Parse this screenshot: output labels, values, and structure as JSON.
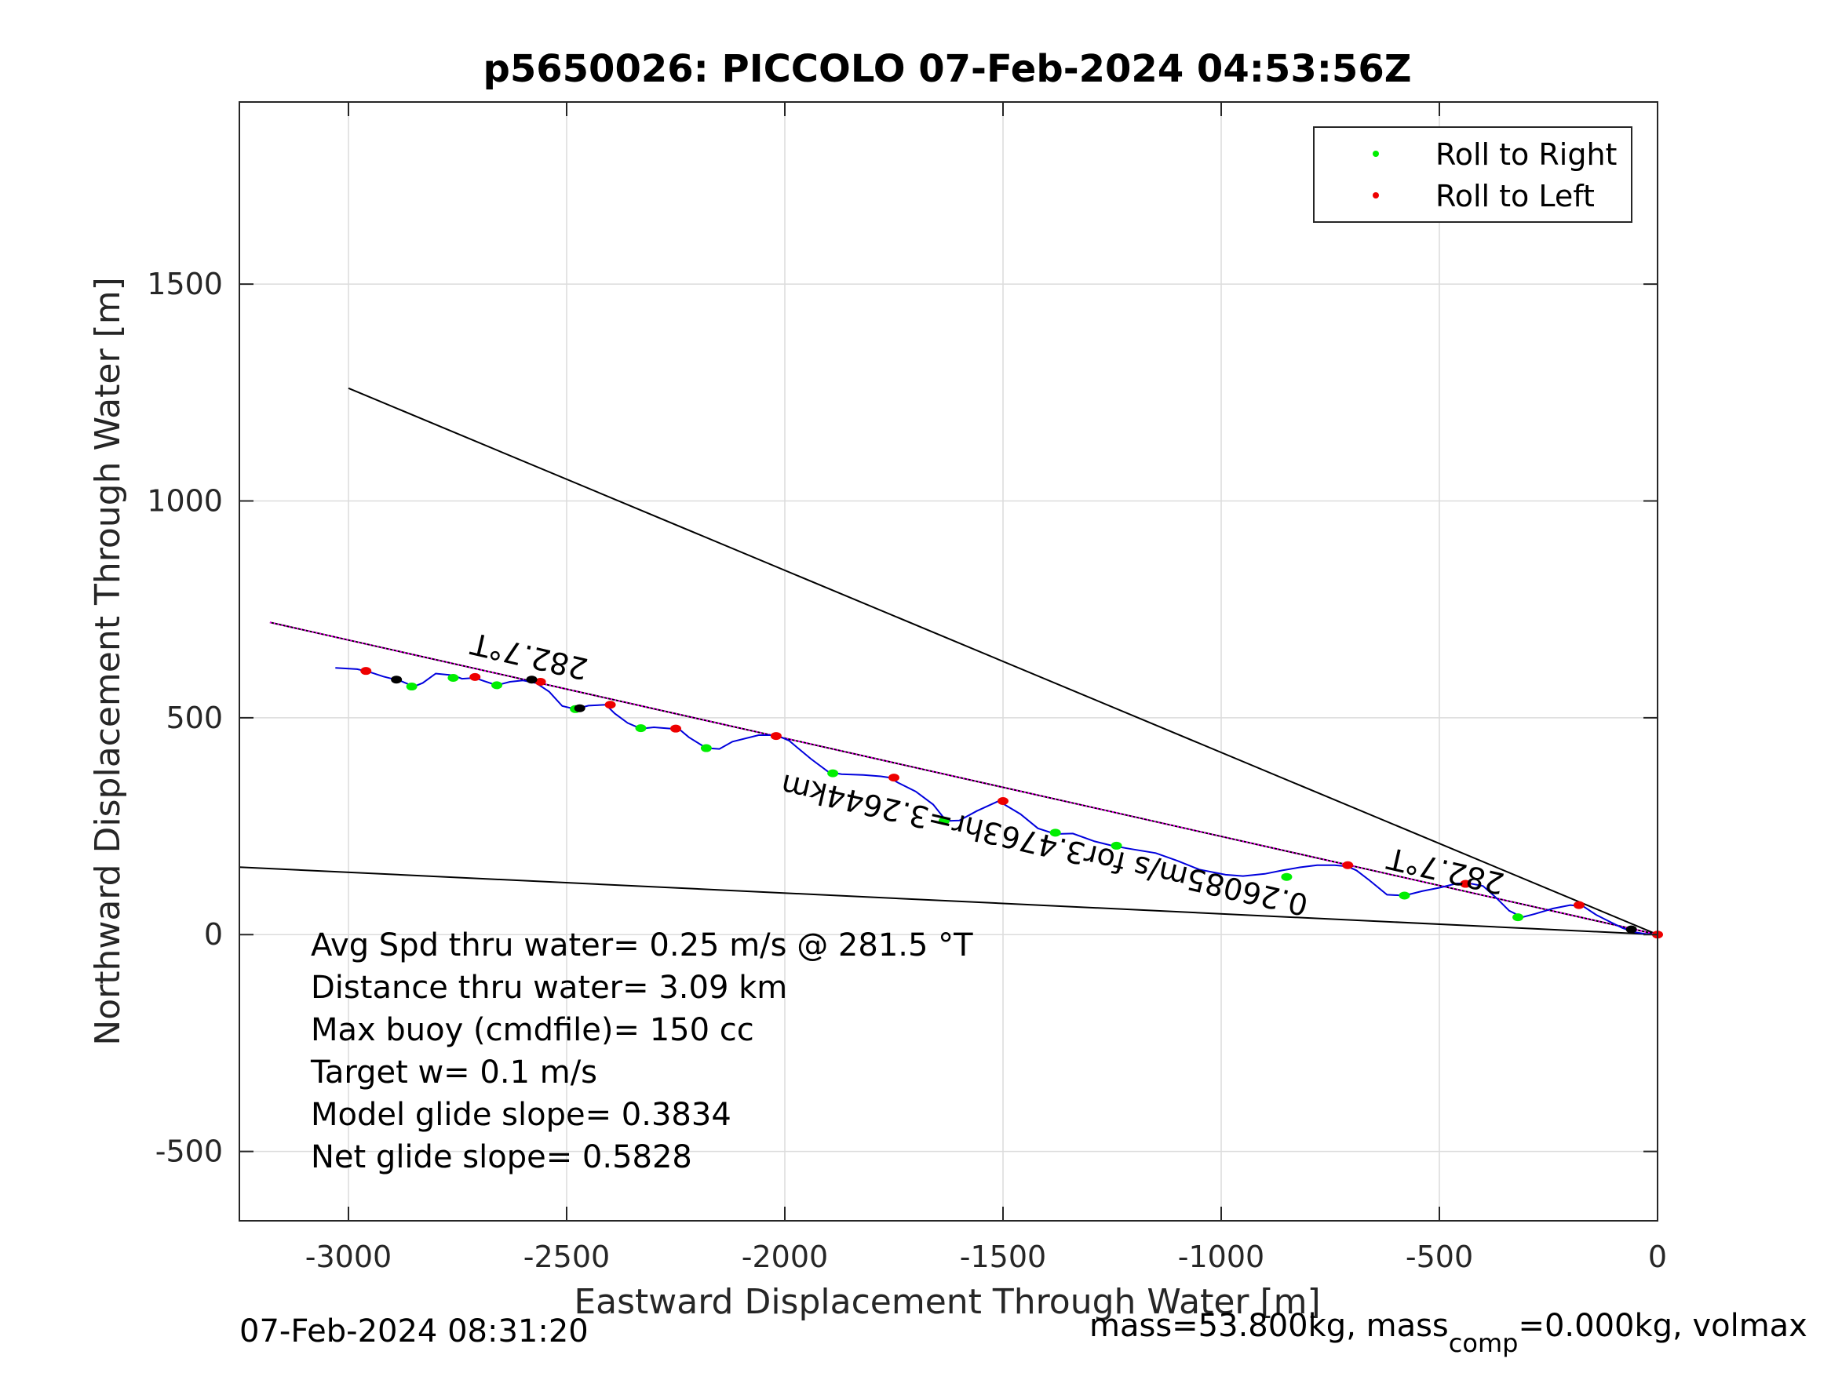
{
  "chart_data": {
    "type": "line",
    "title": "p5650026: PICCOLO 07-Feb-2024 04:53:56Z",
    "xlabel": "Eastward Displacement Through Water [m]",
    "ylabel": "Northward Displacement Through Water [m]",
    "xlim": [
      -3250,
      0
    ],
    "ylim": [
      -660,
      1920
    ],
    "xticks": [
      -3000,
      -2500,
      -2000,
      -1500,
      -1000,
      -500,
      0
    ],
    "yticks": [
      -500,
      0,
      500,
      1000,
      1500
    ],
    "xtick_labels": [
      "-3000",
      "-2500",
      "-2000",
      "-1500",
      "-1000",
      "-500",
      "0"
    ],
    "ytick_labels": [
      "-500",
      "0",
      "500",
      "1000",
      "1500"
    ],
    "grid": true,
    "legend_position": "top-right",
    "legend": [
      {
        "label": "Roll to Right",
        "color": "#00ee00"
      },
      {
        "label": "Roll to Left",
        "color": "#ee0000"
      }
    ],
    "track": {
      "color": "#0000dd",
      "x": [
        -3030,
        -2980,
        -2950,
        -2920,
        -2880,
        -2850,
        -2830,
        -2800,
        -2760,
        -2740,
        -2710,
        -2690,
        -2660,
        -2630,
        -2600,
        -2570,
        -2540,
        -2510,
        -2480,
        -2450,
        -2410,
        -2390,
        -2360,
        -2330,
        -2300,
        -2260,
        -2240,
        -2220,
        -2180,
        -2150,
        -2120,
        -2060,
        -2020,
        -1990,
        -1970,
        -1940,
        -1900,
        -1870,
        -1820,
        -1780,
        -1760,
        -1740,
        -1700,
        -1660,
        -1630,
        -1600,
        -1560,
        -1510,
        -1460,
        -1420,
        -1380,
        -1340,
        -1290,
        -1250,
        -1210,
        -1150,
        -1100,
        -1050,
        -990,
        -950,
        -900,
        -860,
        -820,
        -780,
        -740,
        -710,
        -690,
        -660,
        -620,
        -580,
        -540,
        -500,
        -460,
        -430,
        -400,
        -370,
        -340,
        -310,
        -280,
        -240,
        -200,
        -170,
        -140,
        -110,
        -80,
        -50,
        -30,
        0
      ],
      "y": [
        615,
        612,
        605,
        595,
        585,
        572,
        580,
        602,
        598,
        590,
        592,
        585,
        575,
        583,
        586,
        580,
        560,
        527,
        520,
        528,
        530,
        510,
        488,
        475,
        478,
        475,
        472,
        455,
        430,
        428,
        445,
        460,
        460,
        447,
        430,
        405,
        375,
        370,
        368,
        365,
        362,
        350,
        330,
        300,
        262,
        263,
        285,
        308,
        278,
        245,
        232,
        233,
        215,
        205,
        198,
        188,
        170,
        150,
        138,
        135,
        140,
        148,
        155,
        160,
        160,
        157,
        148,
        125,
        92,
        90,
        100,
        108,
        118,
        118,
        112,
        85,
        55,
        40,
        48,
        60,
        68,
        65,
        45,
        30,
        15,
        5,
        2,
        0
      ]
    },
    "roll_right_points": {
      "x": [
        -2855,
        -2760,
        -2660,
        -2480,
        -2330,
        -2180,
        -1890,
        -1635,
        -1380,
        -1240,
        -850,
        -580,
        -320
      ],
      "y": [
        572,
        592,
        575,
        520,
        476,
        430,
        372,
        262,
        235,
        205,
        133,
        90,
        40
      ]
    },
    "roll_left_points": {
      "x": [
        -2960,
        -2710,
        -2560,
        -2400,
        -2250,
        -2020,
        -1750,
        -1500,
        -710,
        -440,
        -180,
        0
      ],
      "y": [
        608,
        594,
        583,
        530,
        475,
        458,
        362,
        308,
        160,
        117,
        68,
        0
      ]
    },
    "black_points": {
      "x": [
        -2890,
        -2580,
        -2470,
        -60
      ],
      "y": [
        588,
        588,
        522,
        12
      ]
    },
    "heading_line": {
      "color": "#ff00ff",
      "x": [
        -3180,
        0
      ],
      "y": [
        720,
        0
      ]
    },
    "envelope_lines": [
      {
        "color": "#000000",
        "x": [
          0,
          -3000
        ],
        "y": [
          0,
          1260
        ]
      },
      {
        "color": "#000000",
        "x": [
          0,
          -3300
        ],
        "y": [
          0,
          158
        ]
      },
      {
        "color": "#000000",
        "x": [
          0,
          -3180
        ],
        "y": [
          0,
          720
        ]
      }
    ],
    "annotations": [
      {
        "text": "282.7°T",
        "x": -2580,
        "y": 665,
        "rotation_deg": 193
      },
      {
        "text": "0.26085m/s for3.4763hr=3.2644km",
        "x": -1400,
        "y": 230,
        "rotation_deg": 193
      },
      {
        "text": "282.7°T",
        "x": -480,
        "y": 170,
        "rotation_deg": 193
      }
    ],
    "info_lines": [
      "Avg Spd thru water=  0.25 m/s @ 281.5 °T",
      "Distance thru water=  3.09 km",
      "Max buoy (cmdfile)= 150 cc",
      "Target w= 0.1 m/s",
      "Model glide slope= 0.3834",
      "Net glide slope= 0.5828"
    ]
  },
  "footer": {
    "left": "07-Feb-2024 08:31:20",
    "mass_text": "mass=53.800kg, mass",
    "mass_sub": "comp",
    "mass_rest": "=0.000kg, volmax"
  }
}
